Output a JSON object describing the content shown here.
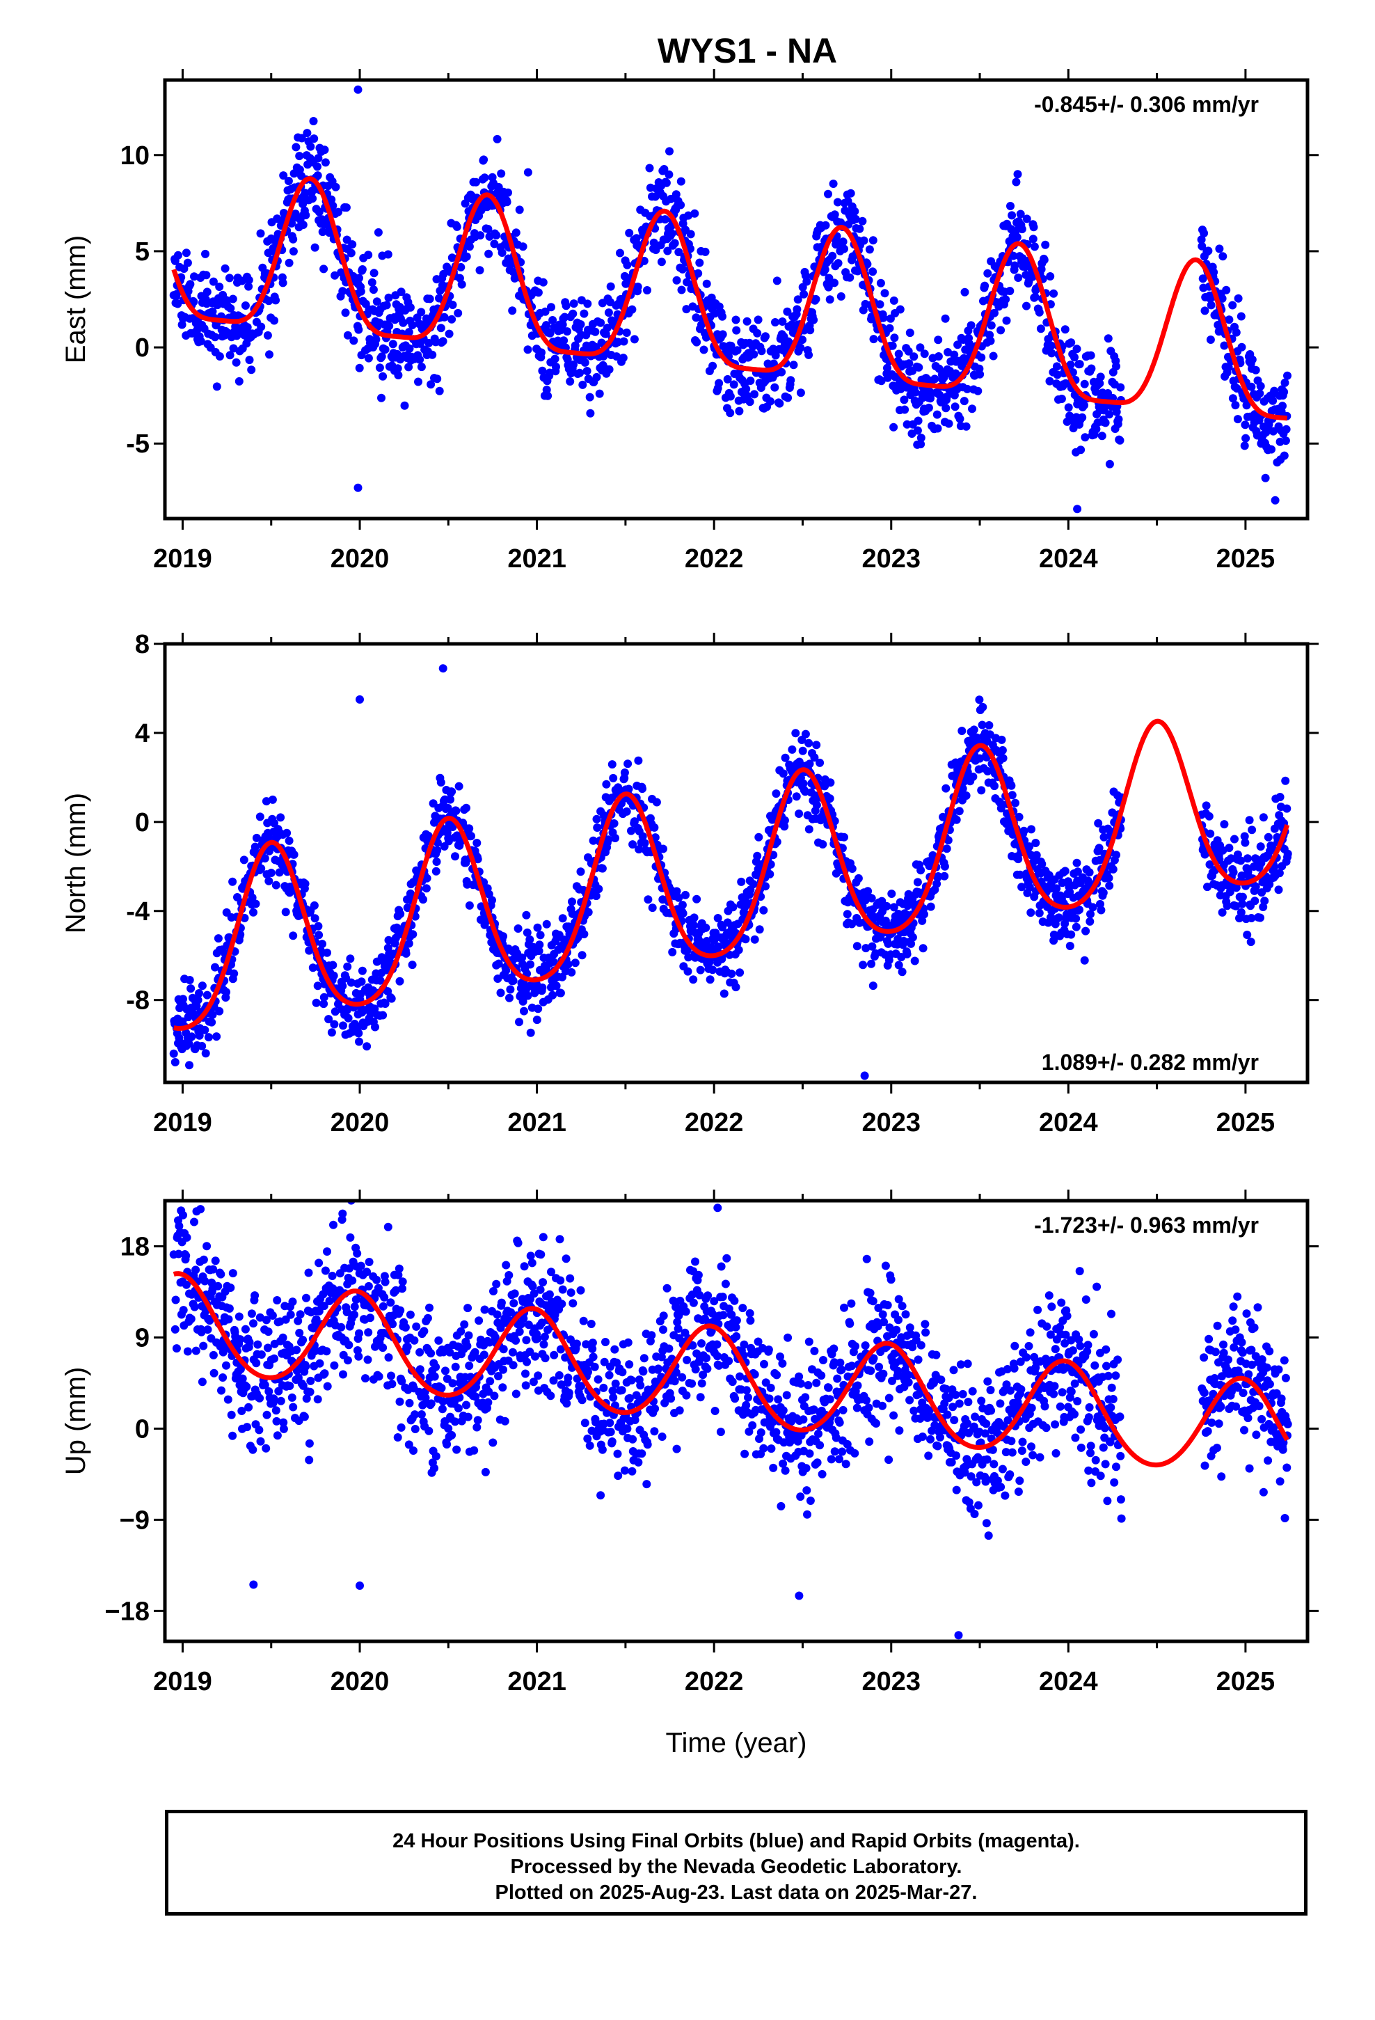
{
  "title": "WYS1 - NA",
  "xlabel": "Time (year)",
  "footer": [
    "24 Hour Positions Using Final Orbits (blue) and Rapid Orbits (magenta).",
    "Processed by the Nevada Geodetic Laboratory.",
    "Plotted on 2025-Aug-23. Last data on 2025-Mar-27."
  ],
  "colors": {
    "points": "#0000ff",
    "fit": "#ff0000",
    "axes": "#000000"
  },
  "chart_data": [
    {
      "type": "scatter",
      "ylabel": "East (mm)",
      "rate": "-0.845+/- 0.306 mm/yr",
      "rate_position": "top-right",
      "xlim": [
        2018.9,
        2025.35
      ],
      "ylim": [
        -8.9,
        13.9
      ],
      "xticks": [
        2019,
        2020,
        2021,
        2022,
        2023,
        2024,
        2025
      ],
      "xtick_labels": [
        "2019",
        "2020",
        "2021",
        "2022",
        "2023",
        "2024",
        "2025"
      ],
      "yticks": [
        -5,
        0,
        5,
        10
      ],
      "ytick_labels": [
        "-5",
        "0",
        "5",
        "10"
      ],
      "fit": {
        "trend": -0.845,
        "offset": 1.95,
        "annual_amp": 3.9,
        "annual_peak": 0.72,
        "semi_amp": 1.0,
        "semi_peak": 0.72
      },
      "scatter_sd": 1.4,
      "seed": 11,
      "gaps": [
        [
          2024.3,
          2024.75
        ]
      ],
      "outliers": [
        [
          2019.99,
          13.4
        ],
        [
          2019.99,
          -7.3
        ],
        [
          2024.05,
          -8.4
        ],
        [
          2023.8,
          6.4
        ],
        [
          2020.95,
          9.1
        ]
      ],
      "series": [
        {
          "name": "24 Hour Positions",
          "color": "#0000ff",
          "values": "daily"
        },
        {
          "name": "Fit",
          "color": "#ff0000"
        }
      ]
    },
    {
      "type": "scatter",
      "ylabel": "North (mm)",
      "rate": "1.089+/- 0.282 mm/yr",
      "rate_position": "bottom-right",
      "xlim": [
        2018.9,
        2025.35
      ],
      "ylim": [
        -11.7,
        8.0
      ],
      "xticks": [
        2019,
        2020,
        2021,
        2022,
        2023,
        2024,
        2025
      ],
      "xtick_labels": [
        "2019",
        "2020",
        "2021",
        "2022",
        "2023",
        "2024",
        "2025"
      ],
      "yticks": [
        -8,
        -4,
        0,
        4,
        8
      ],
      "ytick_labels": [
        "-8",
        "-4",
        "0",
        "4",
        "8"
      ],
      "fit": {
        "trend": 1.089,
        "offset": -2.7,
        "annual_amp": 3.9,
        "annual_peak": 0.5,
        "semi_amp": 0.6,
        "semi_peak": 0.5
      },
      "scatter_sd": 0.9,
      "seed": 23,
      "gaps": [
        [
          2024.3,
          2024.75
        ]
      ],
      "outliers": [
        [
          2022.85,
          -11.4
        ],
        [
          2018.97,
          -9.5
        ],
        [
          2019.99,
          -9.2
        ],
        [
          2020.47,
          6.9
        ],
        [
          2020.0,
          5.5
        ]
      ],
      "series": [
        {
          "name": "24 Hour Positions",
          "color": "#0000ff",
          "values": "daily"
        },
        {
          "name": "Fit",
          "color": "#ff0000"
        }
      ]
    },
    {
      "type": "scatter",
      "ylabel": "Up (mm)",
      "rate": "-1.723+/- 0.963 mm/yr",
      "rate_position": "top-right",
      "xlim": [
        2018.9,
        2025.35
      ],
      "ylim": [
        -21.0,
        22.5
      ],
      "xticks": [
        2019,
        2020,
        2021,
        2022,
        2023,
        2024,
        2025
      ],
      "xtick_labels": [
        "2019",
        "2020",
        "2021",
        "2022",
        "2023",
        "2024",
        "2025"
      ],
      "yticks": [
        -18,
        -9,
        0,
        9,
        18
      ],
      "ytick_labels": [
        "−18",
        "−9",
        "0",
        "9",
        "18"
      ],
      "fit": {
        "trend": -1.723,
        "offset": 5.0,
        "annual_amp": 4.7,
        "annual_peak": 0.98,
        "semi_amp": 0.4,
        "semi_peak": 0.98
      },
      "scatter_sd": 3.6,
      "seed": 37,
      "gaps": [
        [
          2024.3,
          2024.75
        ]
      ],
      "outliers": [
        [
          2022.02,
          21.8
        ],
        [
          2023.38,
          -20.4
        ],
        [
          2020.0,
          -15.5
        ],
        [
          2019.4,
          -15.4
        ],
        [
          2022.48,
          -16.5
        ]
      ],
      "series": [
        {
          "name": "24 Hour Positions",
          "color": "#0000ff",
          "values": "daily"
        },
        {
          "name": "Fit",
          "color": "#ff0000"
        }
      ]
    }
  ]
}
